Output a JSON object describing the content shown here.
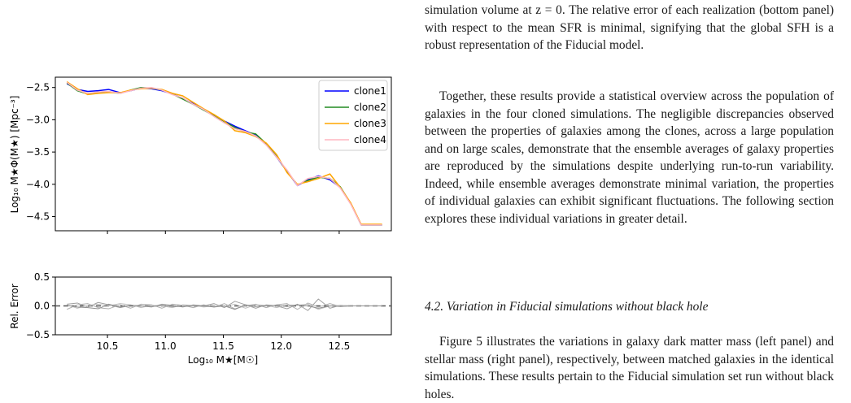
{
  "text": {
    "para_intro": "simulation volume at z = 0. The relative error of each realization (bottom panel) with respect to the mean SFR is minimal, signifying that the global SFH is a robust representation of the Fiducial model.",
    "para_together": "Together, these results provide a statistical overview across the population of galaxies in the four cloned simulations. The negligible discrepancies observed between the properties of galaxies among the clones, across a large population and on large scales, demonstrate that the ensemble averages of galaxy properties are reproduced by the simulations despite underlying run-to-run variability. Indeed, while ensemble averages demonstrate minimal variation, the properties of individual galaxies can exhibit significant fluctuations. The following section explores these individual variations in greater detail.",
    "section_heading": "4.2. Variation in Fiducial simulations without black hole",
    "para_figure": "Figure 5 illustrates the variations in galaxy dark matter mass (left panel) and stellar mass (right panel), respectively, between matched galaxies in the identical simulations. These results pertain to the Fiducial simulation set run without black holes."
  },
  "chart_data": [
    {
      "type": "line",
      "xlabel": "Log₁₀ M★[M☉]",
      "ylabel": "Log₁₀ M★Φ(M★) [Mpc⁻³]",
      "xlim": [
        10.05,
        12.95
      ],
      "ylim": [
        -4.72,
        -2.34
      ],
      "yticks": [
        -2.5,
        -3.0,
        -3.5,
        -4.0,
        -4.5
      ],
      "ytick_labels": [
        "−2.5",
        "−3.0",
        "−3.5",
        "−4.0",
        "−4.5"
      ],
      "xticks": [
        10.5,
        11.0,
        11.5,
        12.0,
        12.5
      ],
      "grid": false,
      "legend_position": "top-right",
      "x": [
        10.15,
        10.24,
        10.33,
        10.42,
        10.51,
        10.61,
        10.7,
        10.79,
        10.88,
        10.97,
        11.06,
        11.15,
        11.24,
        11.33,
        11.42,
        11.51,
        11.6,
        11.69,
        11.78,
        11.87,
        11.96,
        12.05,
        12.14,
        12.23,
        12.32,
        12.42,
        12.51,
        12.6,
        12.69,
        12.78,
        12.87
      ],
      "series": [
        {
          "name": "clone1",
          "color": "#0000ff",
          "values": [
            -2.44,
            -2.53,
            -2.56,
            -2.55,
            -2.53,
            -2.58,
            -2.55,
            -2.51,
            -2.52,
            -2.55,
            -2.6,
            -2.67,
            -2.75,
            -2.84,
            -2.93,
            -3.02,
            -3.1,
            -3.17,
            -3.24,
            -3.38,
            -3.58,
            -3.8,
            -4.02,
            -3.93,
            -3.87,
            -3.93,
            -4.05,
            -4.3,
            -4.63,
            -4.63,
            -4.63
          ]
        },
        {
          "name": "clone2",
          "color": "#228b22",
          "values": [
            -2.43,
            -2.55,
            -2.6,
            -2.58,
            -2.57,
            -2.59,
            -2.54,
            -2.5,
            -2.51,
            -2.54,
            -2.6,
            -2.68,
            -2.76,
            -2.85,
            -2.94,
            -3.03,
            -3.12,
            -3.19,
            -3.22,
            -3.37,
            -3.57,
            -3.8,
            -4.01,
            -3.94,
            -3.89,
            -3.91,
            -4.04,
            -4.3,
            -4.63,
            -4.63,
            -4.63
          ]
        },
        {
          "name": "clone3",
          "color": "#ffa500",
          "values": [
            -2.41,
            -2.52,
            -2.61,
            -2.59,
            -2.58,
            -2.58,
            -2.54,
            -2.52,
            -2.51,
            -2.53,
            -2.59,
            -2.63,
            -2.73,
            -2.83,
            -2.92,
            -3.02,
            -3.17,
            -3.2,
            -3.26,
            -3.36,
            -3.54,
            -3.82,
            -4.0,
            -3.96,
            -3.91,
            -3.84,
            -4.05,
            -4.29,
            -4.62,
            -4.62,
            -4.62
          ]
        },
        {
          "name": "clone4",
          "color": "#ffb6c1",
          "values": [
            -2.42,
            -2.54,
            -2.59,
            -2.57,
            -2.56,
            -2.59,
            -2.55,
            -2.51,
            -2.5,
            -2.54,
            -2.61,
            -2.66,
            -2.76,
            -2.84,
            -2.95,
            -3.05,
            -3.14,
            -3.18,
            -3.25,
            -3.39,
            -3.58,
            -3.78,
            -4.02,
            -3.91,
            -3.88,
            -3.91,
            -4.06,
            -4.31,
            -4.63,
            -4.63,
            -4.63
          ]
        }
      ]
    },
    {
      "type": "line",
      "xlabel": "Log₁₀ M★[M☉]",
      "ylabel": "Rel. Error",
      "xlim": [
        10.05,
        12.95
      ],
      "ylim": [
        -0.5,
        0.5
      ],
      "yticks": [
        0.5,
        0.0,
        -0.5
      ],
      "ytick_labels": [
        "0.5",
        "0.0",
        "−0.5"
      ],
      "xticks": [
        10.5,
        11.0,
        11.5,
        12.0,
        12.5
      ],
      "xtick_labels": [
        "10.5",
        "11.0",
        "11.5",
        "12.0",
        "12.5"
      ],
      "grid": false,
      "reference_line": {
        "y": 0.0,
        "style": "dashed",
        "color": "#555555"
      },
      "x": [
        10.15,
        10.24,
        10.33,
        10.42,
        10.51,
        10.61,
        10.7,
        10.79,
        10.88,
        10.97,
        11.06,
        11.15,
        11.24,
        11.33,
        11.42,
        11.51,
        11.6,
        11.69,
        11.78,
        11.87,
        11.96,
        12.05,
        12.14,
        12.23,
        12.32,
        12.42,
        12.51,
        12.6,
        12.69,
        12.78,
        12.87
      ],
      "series": [
        {
          "color": "#a0a0a0",
          "values": [
            0.03,
            0.05,
            -0.02,
            0.06,
            0.02,
            -0.03,
            0.01,
            0.0,
            -0.02,
            0.03,
            0.01,
            -0.02,
            0.02,
            0.0,
            0.04,
            -0.03,
            0.08,
            0.02,
            -0.04,
            0.02,
            0.0,
            -0.05,
            0.03,
            -0.08,
            0.12,
            -0.04,
            0.01,
            0.0,
            0.0,
            0.0,
            0.0
          ]
        },
        {
          "color": "#b0b0b0",
          "values": [
            -0.06,
            0.02,
            0.04,
            -0.03,
            -0.05,
            0.02,
            -0.04,
            0.03,
            0.02,
            -0.04,
            0.03,
            0.01,
            -0.03,
            0.02,
            -0.02,
            0.04,
            -0.05,
            0.0,
            0.03,
            -0.03,
            0.02,
            0.04,
            -0.06,
            0.05,
            -0.02,
            0.04,
            -0.01,
            0.0,
            0.0,
            0.0,
            0.0
          ]
        },
        {
          "color": "#c0c0c0",
          "values": [
            0.02,
            -0.04,
            0.01,
            0.03,
            0.0,
            0.04,
            0.02,
            -0.03,
            0.01,
            0.0,
            -0.03,
            0.02,
            0.01,
            -0.02,
            0.0,
            -0.01,
            0.03,
            -0.04,
            0.02,
            0.01,
            -0.03,
            0.02,
            0.01,
            0.03,
            -0.06,
            0.0,
            0.01,
            0.0,
            0.0,
            0.0,
            0.0
          ]
        },
        {
          "color": "#909090",
          "values": [
            0.01,
            -0.02,
            -0.03,
            -0.05,
            0.03,
            -0.02,
            0.01,
            0.0,
            -0.01,
            0.01,
            -0.01,
            -0.01,
            0.0,
            0.0,
            -0.02,
            0.0,
            -0.06,
            0.02,
            -0.01,
            0.0,
            0.01,
            -0.01,
            0.02,
            0.0,
            -0.04,
            0.0,
            -0.01,
            0.0,
            0.0,
            0.0,
            0.0
          ]
        }
      ]
    }
  ]
}
